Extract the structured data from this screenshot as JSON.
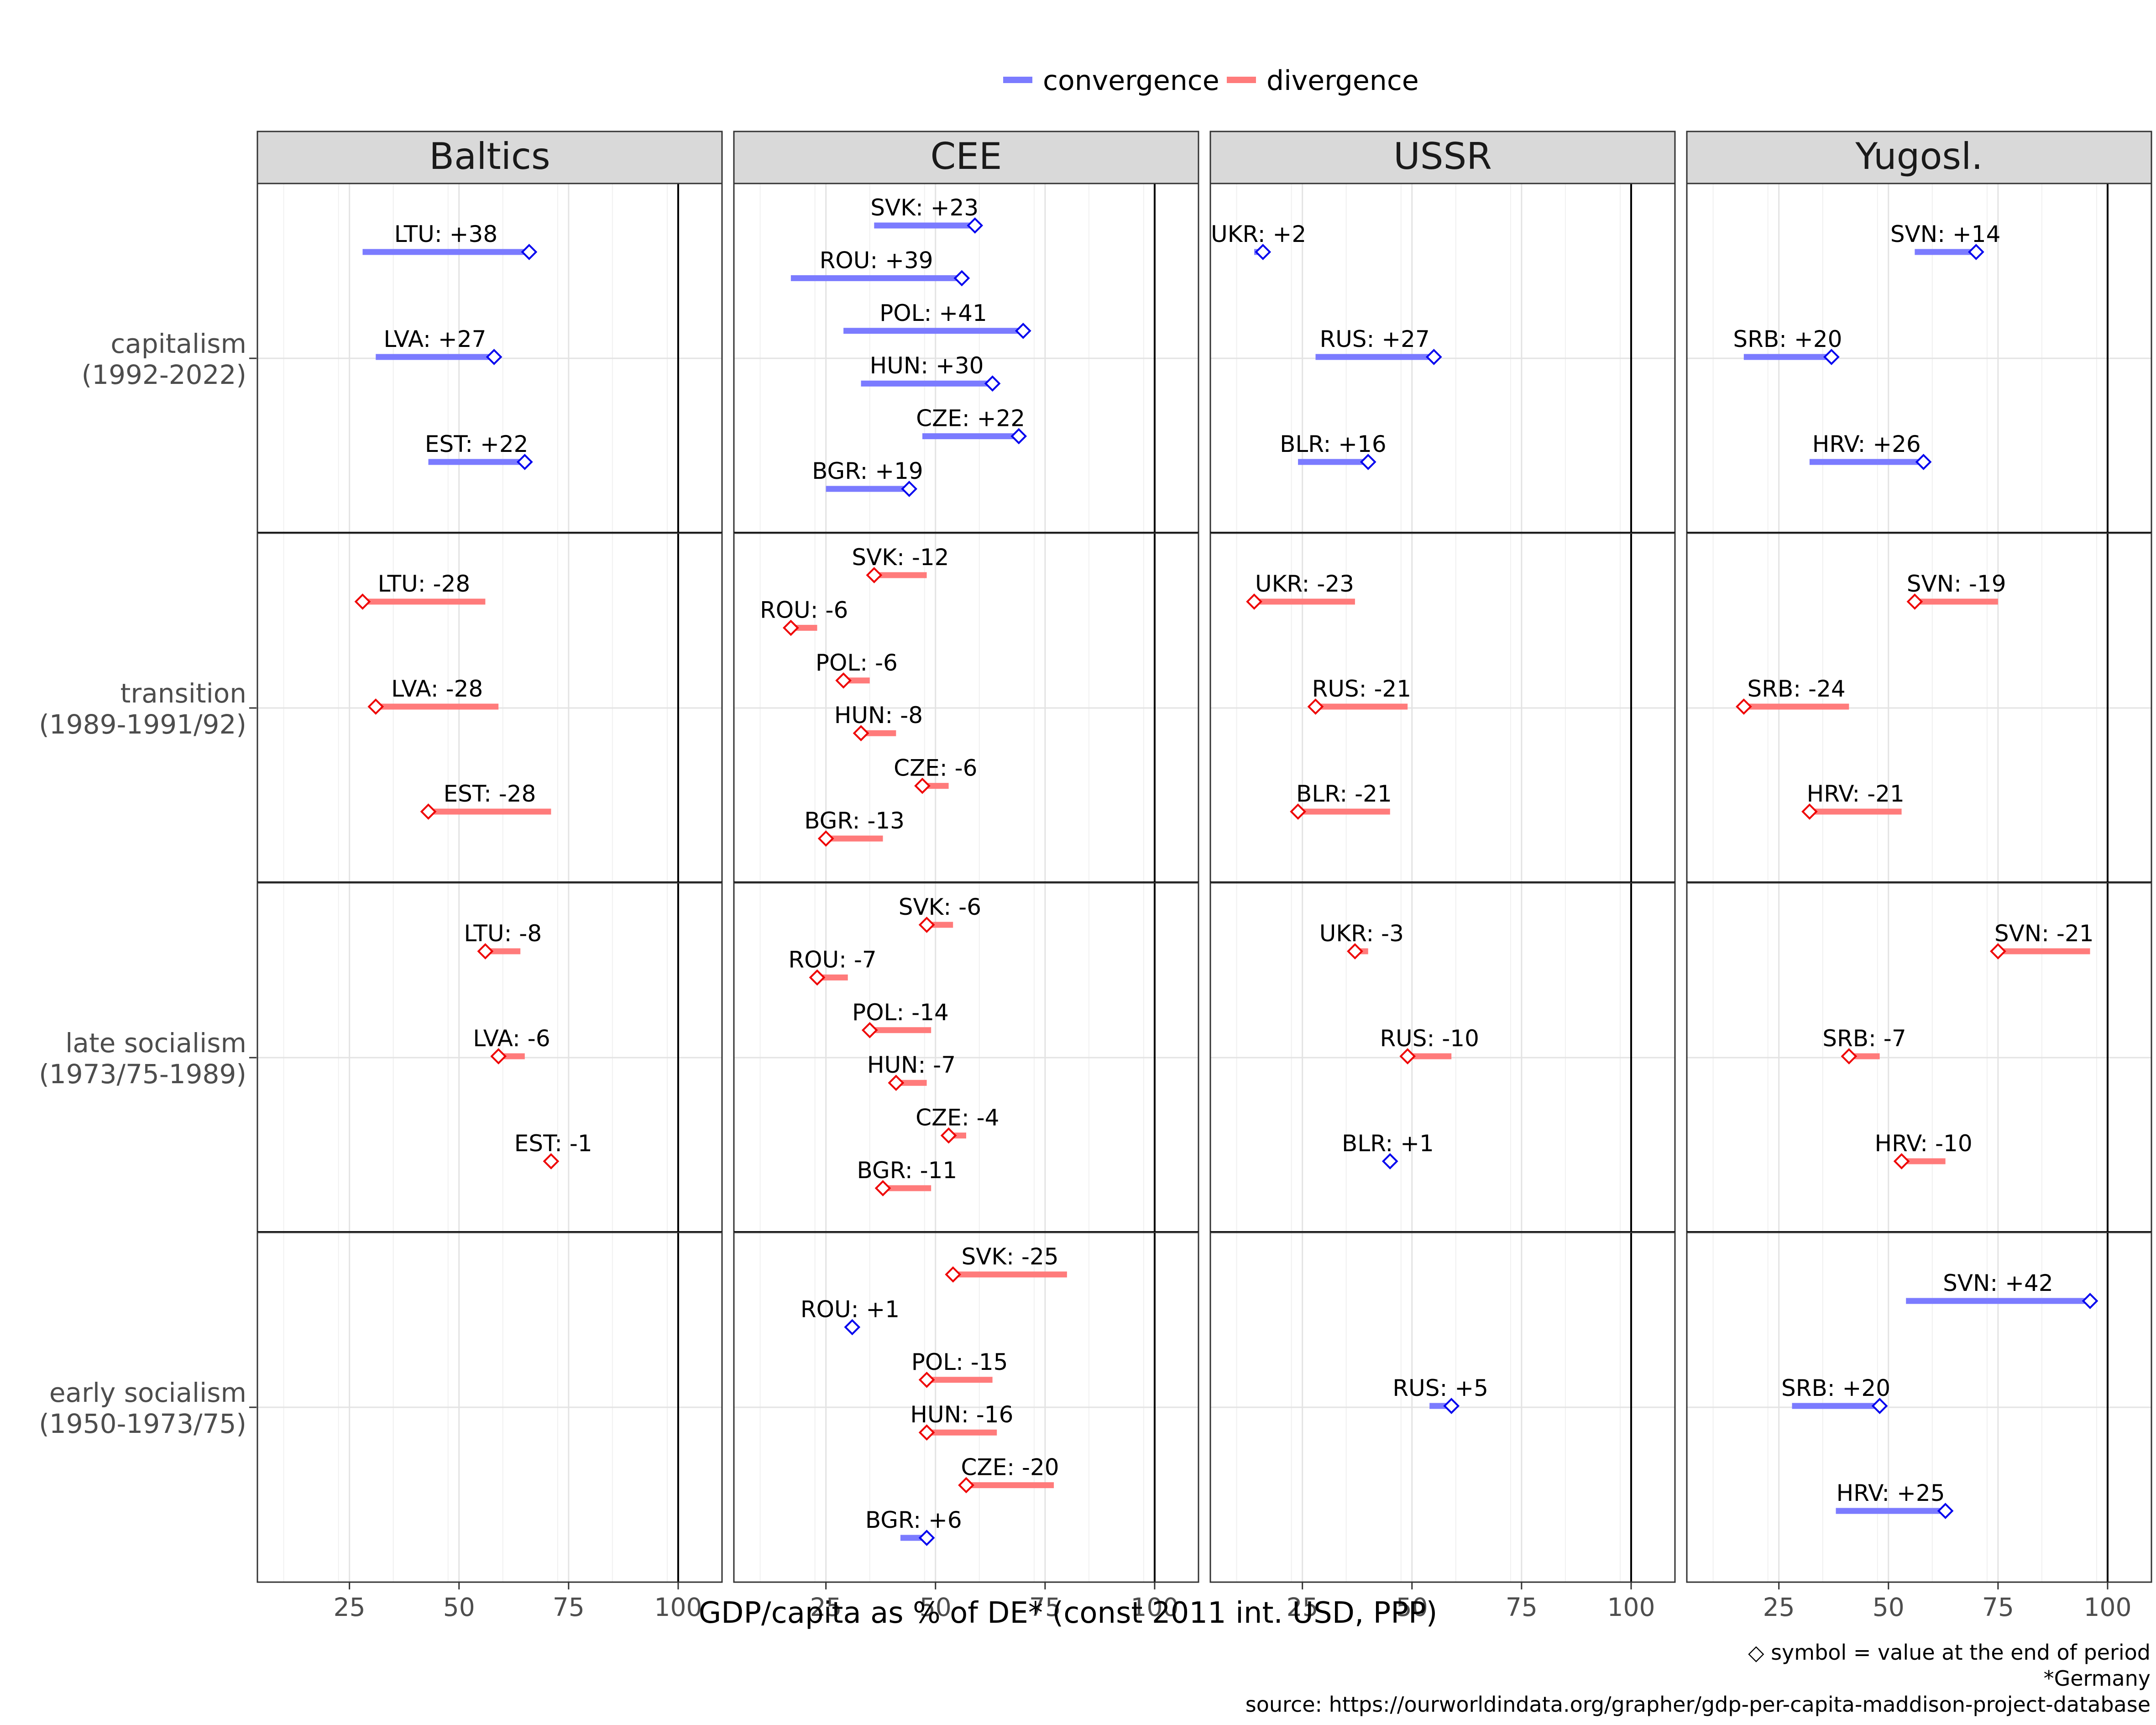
{
  "chart_data": {
    "type": "dumbbell-segments",
    "x_axis_title": "GDP/capita as % of DE* (const 2011 int. USD, PPP)",
    "xlim": [
      4,
      110
    ],
    "x_ticks": [
      25,
      50,
      75,
      100
    ],
    "reference_line": 100,
    "columns": [
      "Baltics",
      "CEE",
      "USSR",
      "Yugosl."
    ],
    "rows": [
      {
        "key": "capitalism",
        "label": [
          "capitalism",
          "(1992-2022)"
        ]
      },
      {
        "key": "transition",
        "label": [
          "transition",
          "(1989-1991/92)"
        ]
      },
      {
        "key": "late",
        "label": [
          "late socialism",
          "(1973/75-1989)"
        ]
      },
      {
        "key": "early",
        "label": [
          "early socialism",
          "(1950-1973/75)"
        ]
      }
    ],
    "legend": [
      {
        "key": "convergence",
        "label": "convergence",
        "color": "#7b7bff",
        "marker_color": "#0000ee"
      },
      {
        "key": "divergence",
        "label": "divergence",
        "color": "#ff7b7b",
        "marker_color": "#ee0000"
      }
    ],
    "captions": [
      "◇ symbol = value at the end of period",
      "*Germany",
      "source: https://ourworldindata.org/grapher/gdp-per-capita-maddison-project-database"
    ],
    "panels": [
      {
        "row": "capitalism",
        "col": "Baltics",
        "countries": [
          {
            "code": "LTU",
            "start": 28,
            "end": 66,
            "label": "LTU: +38"
          },
          {
            "code": "LVA",
            "start": 31,
            "end": 58,
            "label": "LVA: +27"
          },
          {
            "code": "EST",
            "start": 43,
            "end": 65,
            "label": "EST: +22"
          }
        ]
      },
      {
        "row": "capitalism",
        "col": "CEE",
        "countries": [
          {
            "code": "SVK",
            "start": 36,
            "end": 59,
            "label": "SVK: +23"
          },
          {
            "code": "ROU",
            "start": 17,
            "end": 56,
            "label": "ROU: +39"
          },
          {
            "code": "POL",
            "start": 29,
            "end": 70,
            "label": "POL: +41"
          },
          {
            "code": "HUN",
            "start": 33,
            "end": 63,
            "label": "HUN: +30"
          },
          {
            "code": "CZE",
            "start": 47,
            "end": 69,
            "label": "CZE: +22"
          },
          {
            "code": "BGR",
            "start": 25,
            "end": 44,
            "label": "BGR: +19"
          }
        ]
      },
      {
        "row": "capitalism",
        "col": "USSR",
        "countries": [
          {
            "code": "UKR",
            "start": 14,
            "end": 16,
            "label": "UKR: +2"
          },
          {
            "code": "RUS",
            "start": 28,
            "end": 55,
            "label": "RUS: +27"
          },
          {
            "code": "BLR",
            "start": 24,
            "end": 40,
            "label": "BLR: +16"
          }
        ]
      },
      {
        "row": "capitalism",
        "col": "Yugosl.",
        "countries": [
          {
            "code": "SVN",
            "start": 56,
            "end": 70,
            "label": "SVN: +14"
          },
          {
            "code": "SRB",
            "start": 17,
            "end": 37,
            "label": "SRB: +20"
          },
          {
            "code": "HRV",
            "start": 32,
            "end": 58,
            "label": "HRV: +26"
          }
        ]
      },
      {
        "row": "transition",
        "col": "Baltics",
        "countries": [
          {
            "code": "LTU",
            "start": 56,
            "end": 28,
            "label": "LTU: -28"
          },
          {
            "code": "LVA",
            "start": 59,
            "end": 31,
            "label": "LVA: -28"
          },
          {
            "code": "EST",
            "start": 71,
            "end": 43,
            "label": "EST: -28"
          }
        ]
      },
      {
        "row": "transition",
        "col": "CEE",
        "countries": [
          {
            "code": "SVK",
            "start": 48,
            "end": 36,
            "label": "SVK: -12"
          },
          {
            "code": "ROU",
            "start": 23,
            "end": 17,
            "label": "ROU: -6"
          },
          {
            "code": "POL",
            "start": 35,
            "end": 29,
            "label": "POL: -6"
          },
          {
            "code": "HUN",
            "start": 41,
            "end": 33,
            "label": "HUN: -8"
          },
          {
            "code": "CZE",
            "start": 53,
            "end": 47,
            "label": "CZE: -6"
          },
          {
            "code": "BGR",
            "start": 38,
            "end": 25,
            "label": "BGR: -13"
          }
        ]
      },
      {
        "row": "transition",
        "col": "USSR",
        "countries": [
          {
            "code": "UKR",
            "start": 37,
            "end": 14,
            "label": "UKR: -23"
          },
          {
            "code": "RUS",
            "start": 49,
            "end": 28,
            "label": "RUS: -21"
          },
          {
            "code": "BLR",
            "start": 45,
            "end": 24,
            "label": "BLR: -21"
          }
        ]
      },
      {
        "row": "transition",
        "col": "Yugosl.",
        "countries": [
          {
            "code": "SVN",
            "start": 75,
            "end": 56,
            "label": "SVN: -19"
          },
          {
            "code": "SRB",
            "start": 41,
            "end": 17,
            "label": "SRB: -24"
          },
          {
            "code": "HRV",
            "start": 53,
            "end": 32,
            "label": "HRV: -21"
          }
        ]
      },
      {
        "row": "late",
        "col": "Baltics",
        "countries": [
          {
            "code": "LTU",
            "start": 64,
            "end": 56,
            "label": "LTU: -8"
          },
          {
            "code": "LVA",
            "start": 65,
            "end": 59,
            "label": "LVA: -6"
          },
          {
            "code": "EST",
            "start": 72,
            "end": 71,
            "label": "EST: -1"
          }
        ]
      },
      {
        "row": "late",
        "col": "CEE",
        "countries": [
          {
            "code": "SVK",
            "start": 54,
            "end": 48,
            "label": "SVK: -6"
          },
          {
            "code": "ROU",
            "start": 30,
            "end": 23,
            "label": "ROU: -7"
          },
          {
            "code": "POL",
            "start": 49,
            "end": 35,
            "label": "POL: -14"
          },
          {
            "code": "HUN",
            "start": 48,
            "end": 41,
            "label": "HUN: -7"
          },
          {
            "code": "CZE",
            "start": 57,
            "end": 53,
            "label": "CZE: -4"
          },
          {
            "code": "BGR",
            "start": 49,
            "end": 38,
            "label": "BGR: -11"
          }
        ]
      },
      {
        "row": "late",
        "col": "USSR",
        "countries": [
          {
            "code": "UKR",
            "start": 40,
            "end": 37,
            "label": "UKR: -3"
          },
          {
            "code": "RUS",
            "start": 59,
            "end": 49,
            "label": "RUS: -10"
          },
          {
            "code": "BLR",
            "start": 44,
            "end": 45,
            "label": "BLR: +1"
          }
        ]
      },
      {
        "row": "late",
        "col": "Yugosl.",
        "countries": [
          {
            "code": "SVN",
            "start": 96,
            "end": 75,
            "label": "SVN: -21"
          },
          {
            "code": "SRB",
            "start": 48,
            "end": 41,
            "label": "SRB: -7"
          },
          {
            "code": "HRV",
            "start": 63,
            "end": 53,
            "label": "HRV: -10"
          }
        ]
      },
      {
        "row": "early",
        "col": "Baltics",
        "countries": []
      },
      {
        "row": "early",
        "col": "CEE",
        "countries": [
          {
            "code": "SVK",
            "start": 80,
            "end": 54,
            "label": "SVK: -25"
          },
          {
            "code": "ROU",
            "start": 30,
            "end": 31,
            "label": "ROU: +1"
          },
          {
            "code": "POL",
            "start": 63,
            "end": 48,
            "label": "POL: -15"
          },
          {
            "code": "HUN",
            "start": 64,
            "end": 48,
            "label": "HUN: -16"
          },
          {
            "code": "CZE",
            "start": 77,
            "end": 57,
            "label": "CZE: -20"
          },
          {
            "code": "BGR",
            "start": 42,
            "end": 48,
            "label": "BGR: +6"
          }
        ]
      },
      {
        "row": "early",
        "col": "USSR",
        "countries": [
          {
            "code": "RUS",
            "start": 54,
            "end": 59,
            "label": "RUS: +5"
          }
        ]
      },
      {
        "row": "early",
        "col": "Yugosl.",
        "countries": [
          {
            "code": "SVN",
            "start": 54,
            "end": 96,
            "label": "SVN: +42"
          },
          {
            "code": "SRB",
            "start": 28,
            "end": 48,
            "label": "SRB: +20"
          },
          {
            "code": "HRV",
            "start": 38,
            "end": 63,
            "label": "HRV: +25"
          }
        ]
      }
    ]
  }
}
